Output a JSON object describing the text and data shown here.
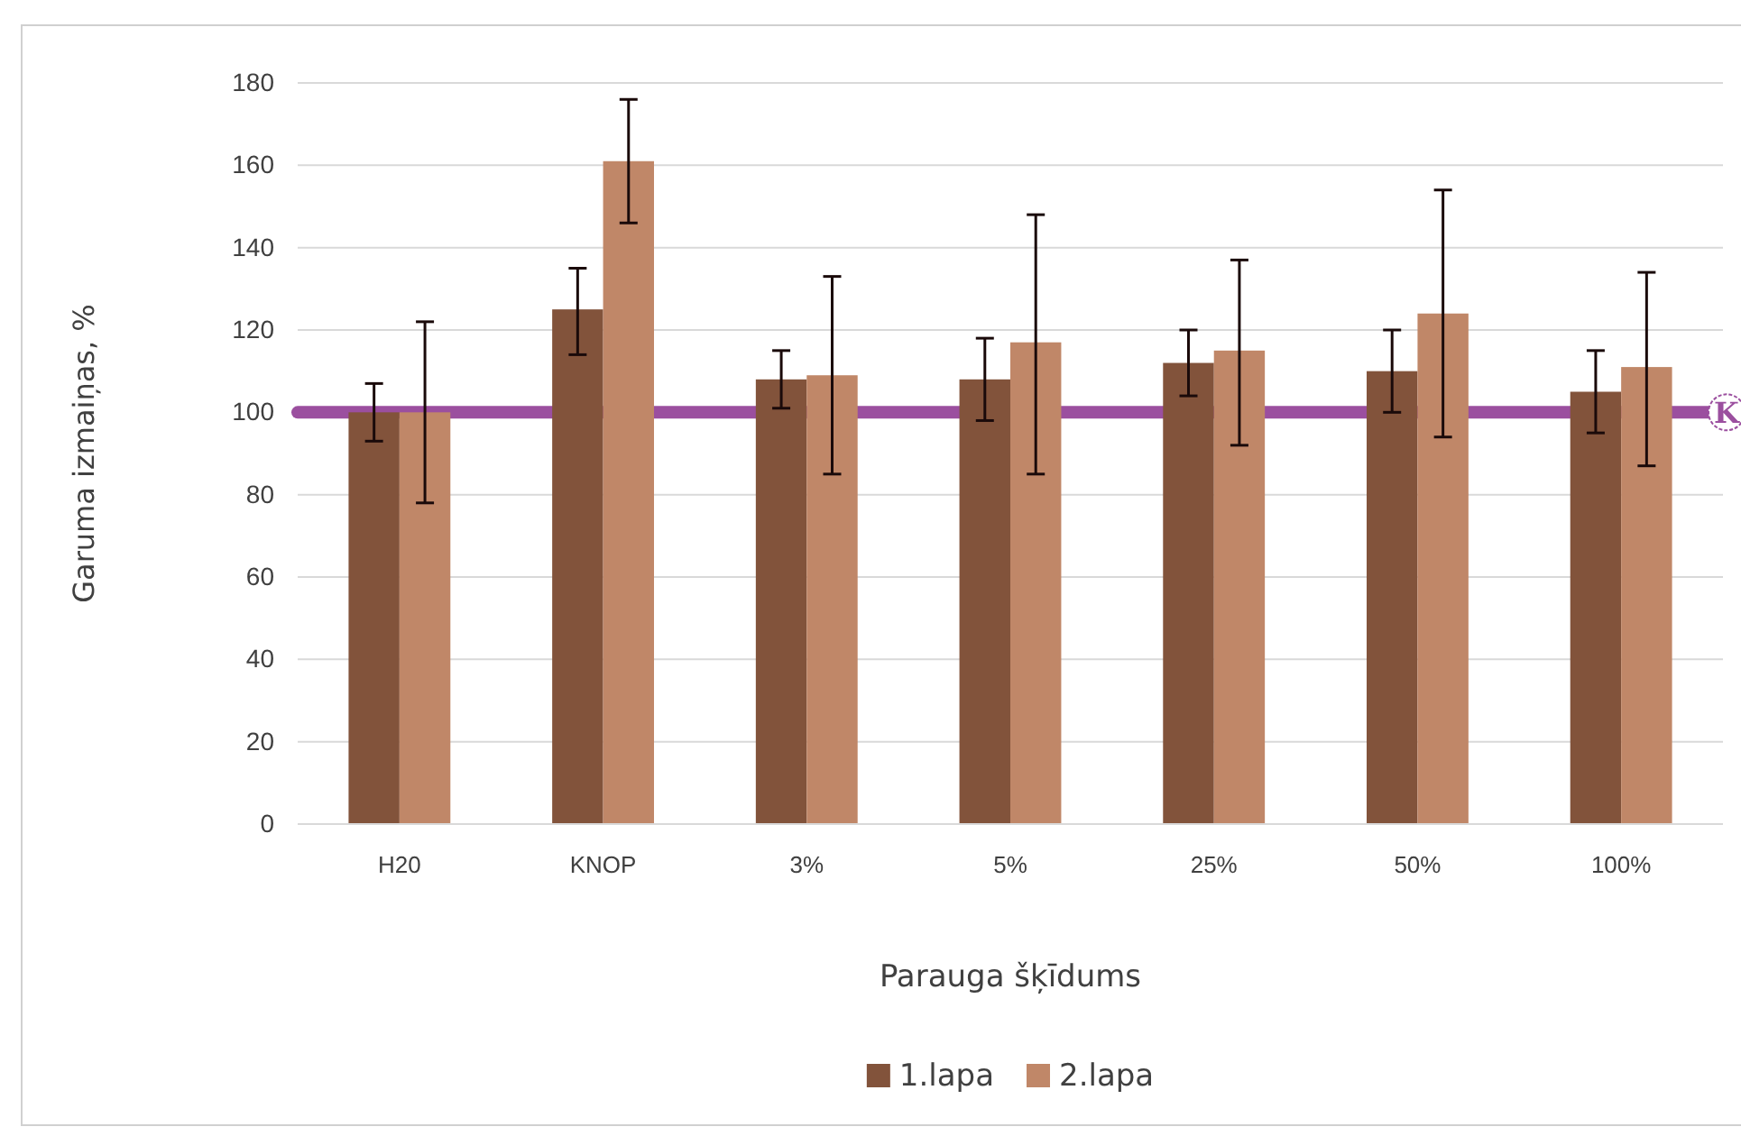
{
  "chart_data": {
    "type": "bar",
    "xlabel": "Parauga šķīdums",
    "ylabel": "Garuma izmaiņas, %",
    "categories": [
      "H20",
      "KNOP",
      "3%",
      "5%",
      "25%",
      "50%",
      "100%"
    ],
    "series": [
      {
        "name": "1.lapa",
        "color": "#82533b",
        "values": [
          100,
          125,
          108,
          108,
          112,
          110,
          105
        ],
        "errors": [
          [
            93,
            107
          ],
          [
            114,
            135
          ],
          [
            101,
            115
          ],
          [
            98,
            118
          ],
          [
            104,
            120
          ],
          [
            100,
            120
          ],
          [
            95,
            115
          ]
        ]
      },
      {
        "name": "2.lapa",
        "color": "#c08768",
        "values": [
          100,
          161,
          109,
          117,
          115,
          124,
          111
        ],
        "errors": [
          [
            78,
            122
          ],
          [
            146,
            176
          ],
          [
            85,
            133
          ],
          [
            85,
            148
          ],
          [
            92,
            137
          ],
          [
            94,
            154
          ],
          [
            87,
            134
          ]
        ]
      }
    ],
    "ylim": [
      0,
      180
    ],
    "yticks": [
      0,
      20,
      40,
      60,
      80,
      100,
      120,
      140,
      160,
      180
    ],
    "grid": "y",
    "legend": "bottom",
    "ref_lines": [
      {
        "axis": "y",
        "value": 100,
        "label": "K",
        "color": "#9b4f9f"
      }
    ]
  }
}
